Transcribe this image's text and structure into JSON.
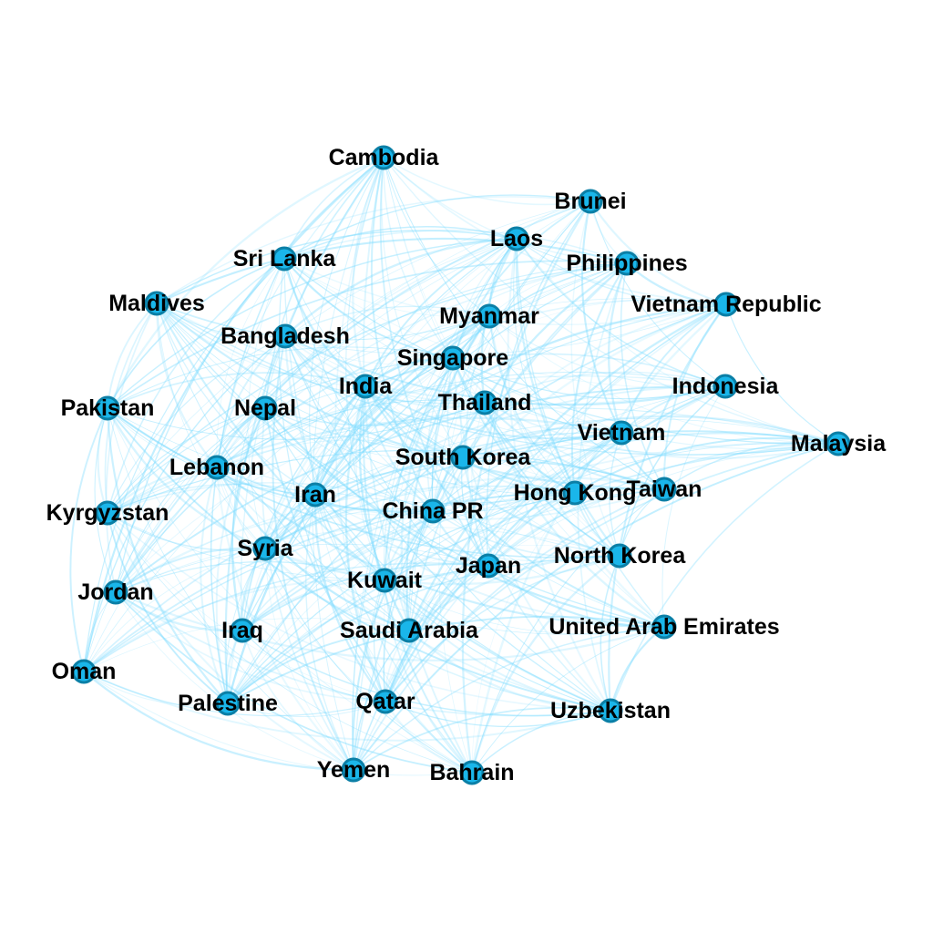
{
  "colors": {
    "edge": "#7fdcff",
    "node_fill": "#1ab6ea",
    "node_stroke": "#0b7fa6",
    "label": "#000000"
  },
  "nodes": [
    {
      "label": "Cambodia"
    },
    {
      "label": "Brunei"
    },
    {
      "label": "Laos"
    },
    {
      "label": "Philippines"
    },
    {
      "label": "Sri Lanka"
    },
    {
      "label": "Maldives"
    },
    {
      "label": "Vietnam Republic"
    },
    {
      "label": "Myanmar"
    },
    {
      "label": "Bangladesh"
    },
    {
      "label": "Singapore"
    },
    {
      "label": "Indonesia"
    },
    {
      "label": "India"
    },
    {
      "label": "Pakistan"
    },
    {
      "label": "Nepal"
    },
    {
      "label": "Thailand"
    },
    {
      "label": "Vietnam"
    },
    {
      "label": "Malaysia"
    },
    {
      "label": "South Korea"
    },
    {
      "label": "Lebanon"
    },
    {
      "label": "Hong Kong"
    },
    {
      "label": "Taiwan"
    },
    {
      "label": "Iran"
    },
    {
      "label": "China PR"
    },
    {
      "label": "Kyrgyzstan"
    },
    {
      "label": "Syria"
    },
    {
      "label": "North Korea"
    },
    {
      "label": "Japan"
    },
    {
      "label": "Kuwait"
    },
    {
      "label": "Jordan"
    },
    {
      "label": "Iraq"
    },
    {
      "label": "Saudi Arabia"
    },
    {
      "label": "United Arab Emirates"
    },
    {
      "label": "Oman"
    },
    {
      "label": "Palestine"
    },
    {
      "label": "Qatar"
    },
    {
      "label": "Uzbekistan"
    },
    {
      "label": "Yemen"
    },
    {
      "label": "Bahrain"
    }
  ]
}
